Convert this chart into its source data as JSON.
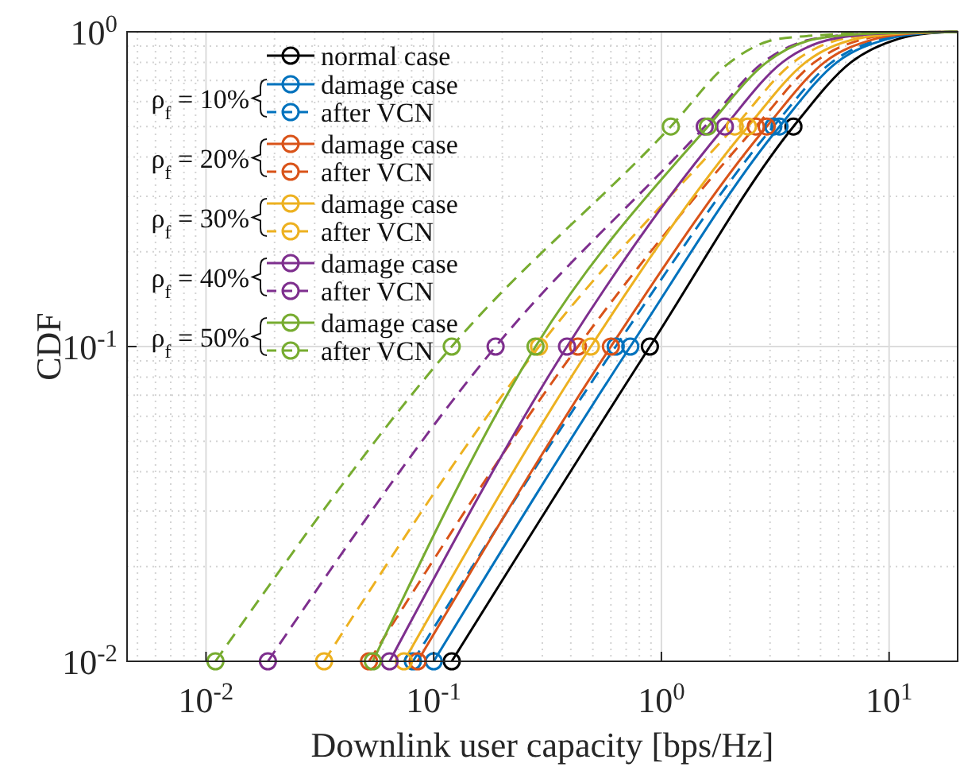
{
  "chart_data": {
    "type": "line",
    "xlabel": "Downlink user capacity [bps/Hz]",
    "ylabel": "CDF",
    "log": "xy",
    "grid": true,
    "legend": "top left",
    "xlim": [
      0.0045,
      20
    ],
    "ylim": [
      0.01,
      1
    ],
    "xticks": [
      {
        "value": 0.01,
        "label": "10$^{-2}$"
      },
      {
        "value": 0.1,
        "label": "10$^{-1}$"
      },
      {
        "value": 1,
        "label": "10$^{0}$"
      },
      {
        "value": 10,
        "label": "10$^{1}$"
      }
    ],
    "yticks": [
      {
        "value": 0.01,
        "label": "10$^{-2}$"
      },
      {
        "value": 0.1,
        "label": "10$^{-1}$"
      },
      {
        "value": 1,
        "label": "10$^{0}$"
      }
    ],
    "annotations": [
      "ρ$_{f}$ = 10%",
      "ρ$_{f}$ = 20%",
      "ρ$_{f}$ = 30%",
      "ρ$_{f}$ = 40%",
      "ρ$_{f}$ = 50%"
    ],
    "series": [
      {
        "name": "normal case",
        "color": "#000000",
        "line_style": "solid",
        "x": [
          0.12,
          0.89,
          3.8,
          6.8,
          11,
          15,
          20
        ],
        "values": [
          0.01,
          0.1,
          0.5,
          0.8,
          0.95,
          0.99,
          1
        ]
      },
      {
        "name": "damage case",
        "color": "#0072bd",
        "line_style": "solid",
        "x": [
          0.1,
          0.73,
          3.3,
          5.9,
          9.9,
          14,
          20
        ],
        "values": [
          0.01,
          0.1,
          0.5,
          0.8,
          0.95,
          0.99,
          1
        ]
      },
      {
        "name": "after VCN",
        "color": "#0072bd",
        "line_style": "dashed",
        "x": [
          0.081,
          0.63,
          3.1,
          5.6,
          9.3,
          14,
          20
        ],
        "values": [
          0.01,
          0.1,
          0.5,
          0.8,
          0.95,
          0.99,
          1
        ]
      },
      {
        "name": "damage case",
        "color": "#d95319",
        "line_style": "solid",
        "x": [
          0.085,
          0.6,
          2.9,
          5.2,
          8.7,
          13,
          20
        ],
        "values": [
          0.01,
          0.1,
          0.5,
          0.8,
          0.95,
          0.99,
          1
        ]
      },
      {
        "name": "after VCN",
        "color": "#d95319",
        "line_style": "dashed",
        "x": [
          0.052,
          0.43,
          2.6,
          4.7,
          7.8,
          12,
          20
        ],
        "values": [
          0.01,
          0.1,
          0.5,
          0.8,
          0.95,
          0.99,
          1
        ]
      },
      {
        "name": "damage case",
        "color": "#edb120",
        "line_style": "solid",
        "x": [
          0.074,
          0.49,
          2.4,
          4.3,
          7.2,
          12,
          20
        ],
        "values": [
          0.01,
          0.1,
          0.5,
          0.8,
          0.95,
          0.99,
          1
        ]
      },
      {
        "name": "after VCN",
        "color": "#edb120",
        "line_style": "dashed",
        "x": [
          0.033,
          0.29,
          2.1,
          3.8,
          6.3,
          11,
          20
        ],
        "values": [
          0.01,
          0.1,
          0.5,
          0.8,
          0.95,
          0.99,
          1
        ]
      },
      {
        "name": "damage case",
        "color": "#7e2f8e",
        "line_style": "solid",
        "x": [
          0.064,
          0.385,
          1.9,
          3.4,
          5.7,
          10,
          20
        ],
        "values": [
          0.01,
          0.1,
          0.5,
          0.8,
          0.95,
          0.99,
          1
        ]
      },
      {
        "name": "after VCN",
        "color": "#7e2f8e",
        "line_style": "dashed",
        "x": [
          0.0187,
          0.187,
          1.55,
          2.8,
          4.7,
          9,
          20
        ],
        "values": [
          0.01,
          0.1,
          0.5,
          0.8,
          0.95,
          0.99,
          1
        ]
      },
      {
        "name": "damage case",
        "color": "#77ac30",
        "line_style": "solid",
        "x": [
          0.054,
          0.28,
          1.6,
          2.9,
          4.8,
          9,
          20
        ],
        "values": [
          0.01,
          0.1,
          0.5,
          0.8,
          0.95,
          0.99,
          1
        ]
      },
      {
        "name": "after VCN",
        "color": "#77ac30",
        "line_style": "dashed",
        "x": [
          0.011,
          0.12,
          1.1,
          2,
          3.3,
          8,
          20
        ],
        "values": [
          0.01,
          0.1,
          0.5,
          0.8,
          0.95,
          0.99,
          1
        ]
      },
      {
        "type": "scatter",
        "marker": "circle",
        "color": "#000000",
        "x": [
          0.12,
          0.89,
          3.8
        ],
        "values": [
          0.01,
          0.1,
          0.5
        ]
      },
      {
        "type": "scatter",
        "marker": "circle",
        "color": "#0072bd",
        "x": [
          0.1,
          0.73,
          3.3
        ],
        "values": [
          0.01,
          0.1,
          0.5
        ]
      },
      {
        "type": "scatter",
        "marker": "circle",
        "color": "#0072bd",
        "x": [
          0.081,
          0.63,
          3.1
        ],
        "values": [
          0.01,
          0.1,
          0.5
        ]
      },
      {
        "type": "scatter",
        "marker": "circle",
        "color": "#d95319",
        "x": [
          0.085,
          0.6,
          2.9
        ],
        "values": [
          0.01,
          0.1,
          0.5
        ]
      },
      {
        "type": "scatter",
        "marker": "circle",
        "color": "#d95319",
        "x": [
          0.052,
          0.43,
          2.6
        ],
        "values": [
          0.01,
          0.1,
          0.5
        ]
      },
      {
        "type": "scatter",
        "marker": "circle",
        "color": "#edb120",
        "x": [
          0.074,
          0.49,
          2.4
        ],
        "values": [
          0.01,
          0.1,
          0.5
        ]
      },
      {
        "type": "scatter",
        "marker": "circle",
        "color": "#edb120",
        "x": [
          0.033,
          0.29,
          2.1
        ],
        "values": [
          0.01,
          0.1,
          0.5
        ]
      },
      {
        "type": "scatter",
        "marker": "circle",
        "color": "#7e2f8e",
        "x": [
          0.064,
          0.385,
          1.9
        ],
        "values": [
          0.01,
          0.1,
          0.5
        ]
      },
      {
        "type": "scatter",
        "marker": "circle",
        "color": "#7e2f8e",
        "x": [
          0.0187,
          0.187,
          1.55
        ],
        "values": [
          0.01,
          0.1,
          0.5
        ]
      },
      {
        "type": "scatter",
        "marker": "circle",
        "color": "#77ac30",
        "x": [
          0.054,
          0.28,
          1.6
        ],
        "values": [
          0.01,
          0.1,
          0.5
        ]
      },
      {
        "type": "scatter",
        "marker": "circle",
        "color": "#77ac30",
        "x": [
          0.011,
          0.12,
          1.1
        ],
        "values": [
          0.01,
          0.1,
          0.5
        ]
      }
    ]
  }
}
